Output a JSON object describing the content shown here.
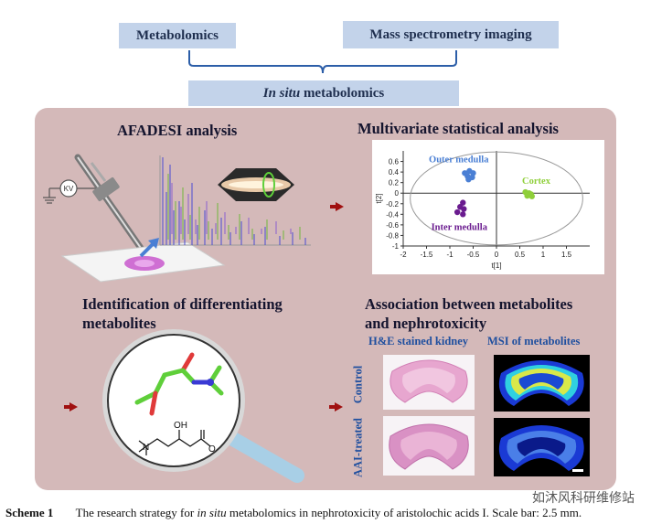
{
  "top": {
    "metabolomics": "Metabolomics",
    "msi": "Mass spectrometry imaging",
    "insitu_italic": "In situ",
    "insitu_rest": " metabolomics"
  },
  "afadesi": {
    "title": "AFADESI analysis",
    "kv": "KV"
  },
  "multivariate": {
    "title": "Multivariate statistical analysis",
    "labels": {
      "outer": "Outer medulla",
      "cortex": "Cortex",
      "inner": "Inter medulla"
    },
    "xlabel": "t[1]",
    "ylabel": "t[2]"
  },
  "chart_data": {
    "type": "scatter",
    "title": "",
    "xlabel": "t[1]",
    "ylabel": "t[2]",
    "xlim": [
      -2,
      2
    ],
    "ylim": [
      -1,
      0.8
    ],
    "xticks": [
      "-2",
      "-1.5",
      "-1",
      "-0.5",
      "0",
      "0.5",
      "1",
      "1.5"
    ],
    "yticks": [
      "0.6",
      "0.4",
      "0.2",
      "0",
      "-0.2",
      "-0.4",
      "-0.6",
      "-0.8",
      "-1"
    ],
    "series": [
      {
        "name": "Outer medulla",
        "color": "#4a7fd4",
        "points": [
          [
            -0.68,
            0.38
          ],
          [
            -0.58,
            0.42
          ],
          [
            -0.5,
            0.38
          ],
          [
            -0.62,
            0.32
          ],
          [
            -0.52,
            0.3
          ],
          [
            -0.6,
            0.26
          ]
        ]
      },
      {
        "name": "Cortex",
        "color": "#8fcf3a",
        "points": [
          [
            0.62,
            0.02
          ],
          [
            0.7,
            0.0
          ],
          [
            0.74,
            -0.02
          ],
          [
            0.66,
            -0.05
          ],
          [
            0.76,
            -0.06
          ]
        ]
      },
      {
        "name": "Inter medulla",
        "color": "#6a1b8f",
        "points": [
          [
            -0.72,
            -0.18
          ],
          [
            -0.78,
            -0.26
          ],
          [
            -0.7,
            -0.3
          ],
          [
            -0.84,
            -0.36
          ],
          [
            -0.72,
            -0.4
          ]
        ]
      }
    ]
  },
  "identification": {
    "title_line1": "Identification of differentiating",
    "title_line2": "metabolites",
    "oh": "OH",
    "nplus": "N",
    "ominus": "O"
  },
  "association": {
    "title_line1": "Association between metabolites",
    "title_line2": "and nephrotoxicity",
    "he": "H&E stained kidney",
    "msi": "MSI of metabolites",
    "control": "Control",
    "aai": "AAI-treated"
  },
  "caption": {
    "label": "Scheme 1",
    "text_a": "The research strategy for ",
    "italic": "in situ",
    "text_b": " metabolomics in nephrotoxicity of aristolochic acids I. Scale bar: 2.5 mm."
  },
  "watermark": "如沐风科研维修站",
  "colors": {
    "panel": "#d4b9b9",
    "topbox": "#c3d3ea",
    "arrow": "#a01010"
  }
}
